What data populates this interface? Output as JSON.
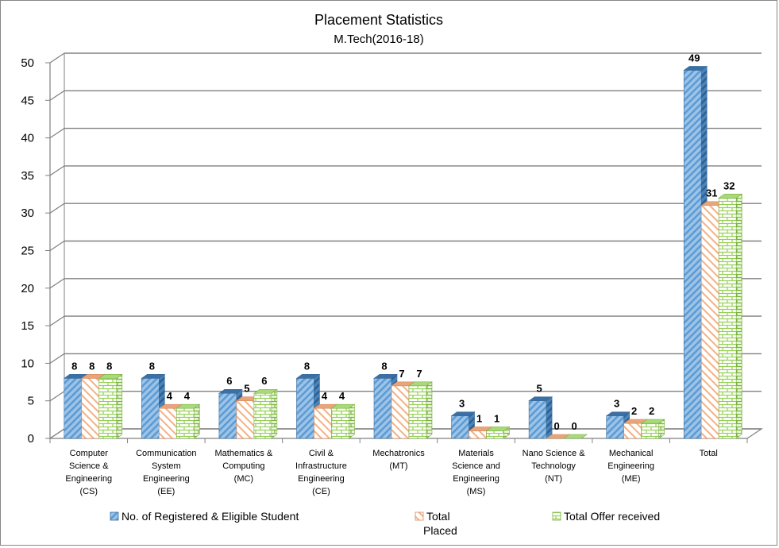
{
  "chart_data": {
    "type": "bar",
    "title": "Placement Statistics",
    "subtitle": "M.Tech(2016-18)",
    "xlabel": "",
    "ylabel": "",
    "ylim": [
      0,
      50
    ],
    "yticks": [
      0,
      5,
      10,
      15,
      20,
      25,
      30,
      35,
      40,
      45,
      50
    ],
    "grid": true,
    "legend_position": "bottom",
    "categories": [
      [
        "Computer",
        "Science &",
        "Engineering",
        "(CS)"
      ],
      [
        "Communication",
        "System",
        "Engineering",
        "(EE)"
      ],
      [
        "Mathematics &",
        "Computing",
        "(MC)"
      ],
      [
        "Civil &",
        "Infrastructure",
        "Engineering",
        "(CE)"
      ],
      [
        "Mechatronics",
        "(MT)"
      ],
      [
        "Materials",
        "Science and",
        "Engineering",
        "(MS)"
      ],
      [
        "Nano Science &",
        "Technology",
        "(NT)"
      ],
      [
        "Mechanical",
        "Engineering",
        "(ME)"
      ],
      [
        "Total"
      ]
    ],
    "series": [
      {
        "name": "No. of Registered & Eligible Student",
        "values": [
          8,
          8,
          6,
          8,
          8,
          3,
          5,
          3,
          49
        ],
        "color": "#5B9BD5",
        "pattern": "diagonal-stripes"
      },
      {
        "name": "Total Placed",
        "values": [
          8,
          4,
          5,
          4,
          7,
          1,
          0,
          2,
          31
        ],
        "color": "#F4B183",
        "pattern": "diagonal-stripes-light"
      },
      {
        "name": "Total Offer received",
        "values": [
          8,
          4,
          6,
          4,
          7,
          1,
          0,
          2,
          32
        ],
        "color": "#92D050",
        "pattern": "bricks"
      }
    ],
    "legend_labels": [
      [
        "No. of Registered & Eligible Student"
      ],
      [
        "Total",
        "Placed"
      ],
      [
        "Total Offer received"
      ]
    ]
  }
}
